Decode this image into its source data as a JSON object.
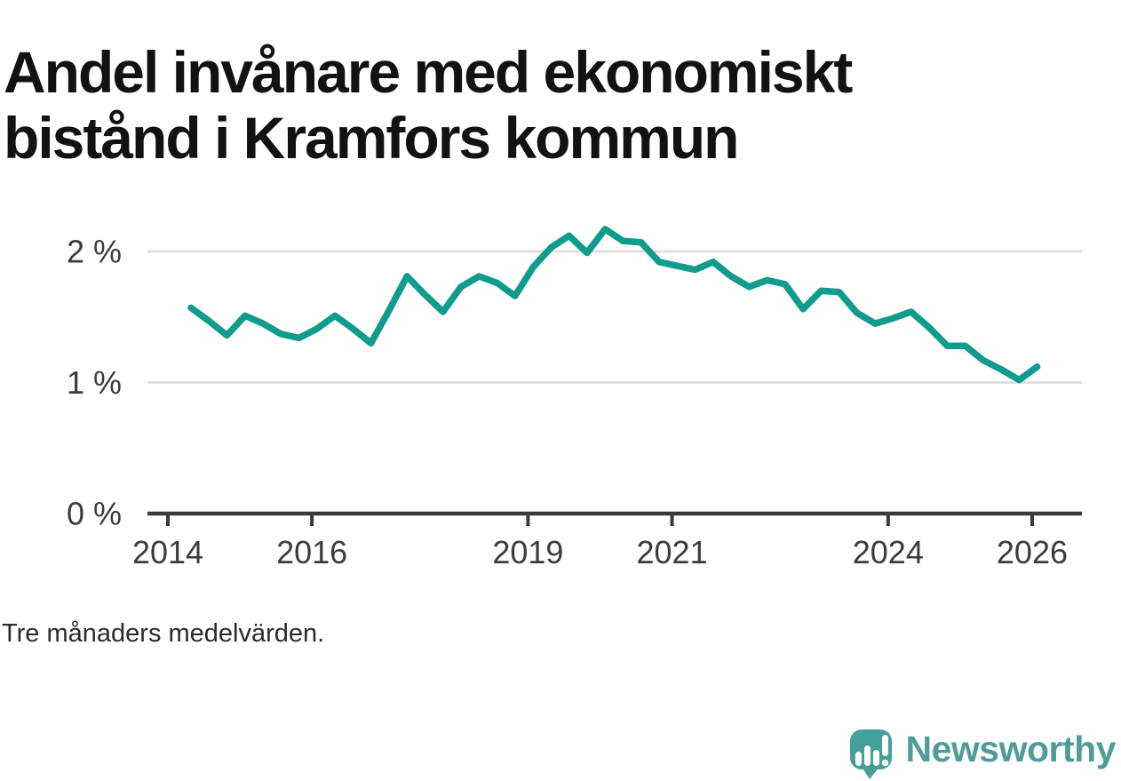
{
  "title": "Andel invånare med ekonomiskt bistånd i Kramfors kommun",
  "note": "Tre månaders medelvärden.",
  "branding": {
    "logo_text": "Newsworthy",
    "logo_icon": "newsworthy-speech-bubble-bar-chart-icon"
  },
  "colors": {
    "line": "#109C8D",
    "grid": "#E0E0E0",
    "axis": "#3A3A3A",
    "axis_text": "#3C3C3C",
    "title": "#121212",
    "note": "#2B2B2B",
    "brand_text": "#4E9D99",
    "brand_icon": "#43A09A",
    "background": "#FFFFFF"
  },
  "chart_data": {
    "type": "line",
    "title": "Andel invånare med ekonomiskt bistånd i Kramfors kommun",
    "xlabel": "",
    "ylabel": "",
    "unit": "%",
    "ylim": [
      0,
      2.4
    ],
    "xlim": [
      2013.7,
      2026.6
    ],
    "grid": "horizontal-only",
    "legend": "none",
    "note": "Tre månaders medelvärden.",
    "y_ticks": [
      {
        "value": 0,
        "label": "0 %"
      },
      {
        "value": 1,
        "label": "1 %"
      },
      {
        "value": 2,
        "label": "2 %"
      }
    ],
    "x_ticks": [
      {
        "value": 2014,
        "label": "2014"
      },
      {
        "value": 2016,
        "label": "2016"
      },
      {
        "value": 2019,
        "label": "2019"
      },
      {
        "value": 2021,
        "label": "2021"
      },
      {
        "value": 2024,
        "label": "2024"
      },
      {
        "value": 2026,
        "label": "2026"
      }
    ],
    "series": [
      {
        "name": "Andel invånare med ekonomiskt bistånd, Kramfors kommun (3 mån medel)",
        "color": "#109C8D",
        "x": [
          2014.32,
          2014.57,
          2014.82,
          2015.07,
          2015.32,
          2015.57,
          2015.82,
          2016.07,
          2016.32,
          2016.57,
          2016.82,
          2017.07,
          2017.32,
          2017.57,
          2017.82,
          2018.07,
          2018.32,
          2018.57,
          2018.82,
          2019.07,
          2019.32,
          2019.57,
          2019.82,
          2020.07,
          2020.32,
          2020.57,
          2020.82,
          2021.07,
          2021.32,
          2021.57,
          2021.82,
          2022.07,
          2022.32,
          2022.57,
          2022.82,
          2023.07,
          2023.32,
          2023.57,
          2023.82,
          2024.07,
          2024.32,
          2024.57,
          2024.82,
          2025.07,
          2025.32,
          2025.57,
          2025.82,
          2026.07
        ],
        "values": [
          1.57,
          1.47,
          1.36,
          1.51,
          1.45,
          1.37,
          1.34,
          1.41,
          1.51,
          1.41,
          1.3,
          1.55,
          1.81,
          1.67,
          1.54,
          1.73,
          1.81,
          1.76,
          1.66,
          1.88,
          2.03,
          2.12,
          1.99,
          2.17,
          2.08,
          2.07,
          1.92,
          1.89,
          1.86,
          1.92,
          1.81,
          1.73,
          1.78,
          1.75,
          1.56,
          1.7,
          1.69,
          1.53,
          1.45,
          1.49,
          1.54,
          1.42,
          1.28,
          1.28,
          1.17,
          1.1,
          1.02,
          1.12
        ]
      }
    ]
  }
}
